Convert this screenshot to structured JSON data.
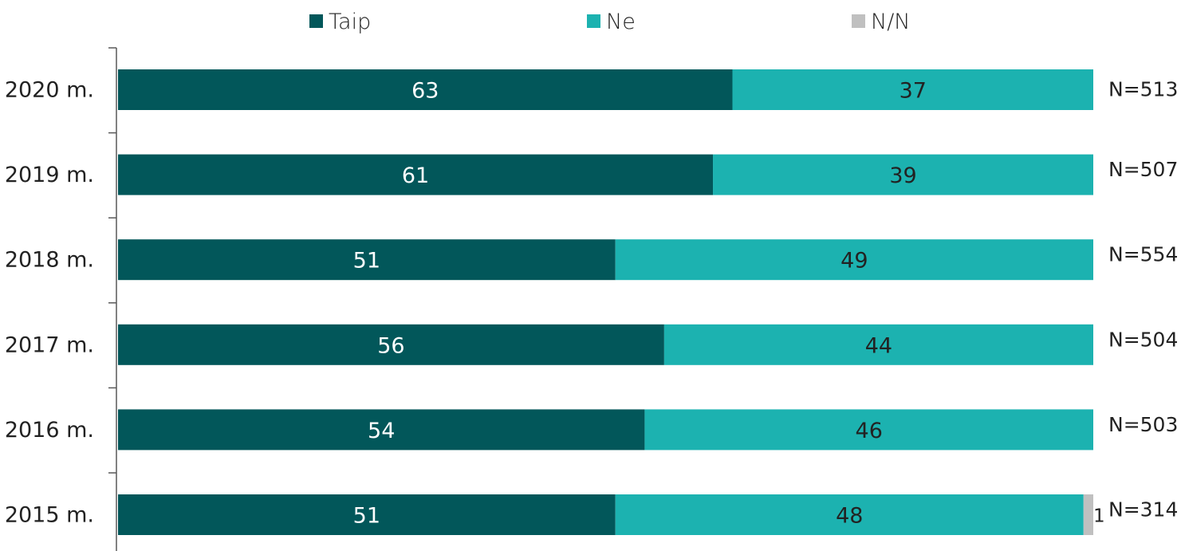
{
  "chart_data": {
    "type": "bar",
    "orientation": "horizontal",
    "stacked": true,
    "categories": [
      "2020 m.",
      "2019 m.",
      "2018 m.",
      "2017 m.",
      "2016 m.",
      "2015 m."
    ],
    "series": [
      {
        "name": "Taip",
        "color": "#02575a",
        "values": [
          63,
          61,
          51,
          56,
          54,
          51
        ]
      },
      {
        "name": "Ne",
        "color": "#1cb2b0",
        "values": [
          37,
          39,
          49,
          44,
          46,
          48
        ]
      },
      {
        "name": "N/N",
        "color": "#c0c0c0",
        "values": [
          0,
          0,
          0,
          0,
          0,
          1
        ]
      }
    ],
    "n_labels": [
      "N=513",
      "N=507",
      "N=554",
      "N=504",
      "N=503",
      "N=314"
    ],
    "xlim": [
      0,
      100
    ],
    "legend_position": "top",
    "grid": false
  }
}
